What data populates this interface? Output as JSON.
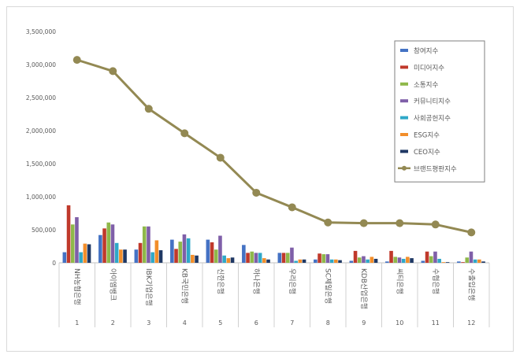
{
  "chart_data": {
    "type": "bar",
    "title": "",
    "xlabel": "",
    "ylabel": "",
    "ylim": [
      0,
      3500000
    ],
    "yticks": [
      "0",
      "500,000",
      "1,000,000",
      "1,500,000",
      "2,000,000",
      "2,500,000",
      "3,000,000",
      "3,500,000"
    ],
    "grid": false,
    "legend_position": "right",
    "ranks": [
      "1",
      "2",
      "3",
      "4",
      "5",
      "6",
      "7",
      "8",
      "9",
      "10",
      "11",
      "12"
    ],
    "categories": [
      "NH농협은행",
      "아이엠뱅크",
      "IBK기업은행",
      "KB국민은행",
      "신한은행",
      "하나은행",
      "우리은행",
      "SC제일은행",
      "KDB산업은행",
      "씨티은행",
      "수협은행",
      "수출입은행"
    ],
    "series": [
      {
        "name": "참여지수",
        "color": "#4472c4",
        "values": [
          160000,
          420000,
          200000,
          350000,
          350000,
          270000,
          150000,
          50000,
          30000,
          20000,
          30000,
          20000
        ]
      },
      {
        "name": "미디어지수",
        "color": "#c0392b",
        "values": [
          870000,
          520000,
          300000,
          210000,
          310000,
          150000,
          150000,
          140000,
          180000,
          180000,
          170000,
          10000
        ]
      },
      {
        "name": "소통지수",
        "color": "#8fb84a",
        "values": [
          580000,
          610000,
          550000,
          320000,
          200000,
          170000,
          150000,
          130000,
          80000,
          90000,
          100000,
          80000
        ]
      },
      {
        "name": "커뮤니티지수",
        "color": "#7f5fa8",
        "values": [
          690000,
          580000,
          550000,
          430000,
          410000,
          150000,
          230000,
          130000,
          100000,
          80000,
          170000,
          170000
        ]
      },
      {
        "name": "사회공헌지수",
        "color": "#2fa8c8",
        "values": [
          160000,
          300000,
          160000,
          370000,
          110000,
          150000,
          30000,
          50000,
          50000,
          60000,
          60000,
          50000
        ]
      },
      {
        "name": "ESG지수",
        "color": "#f28e2b",
        "values": [
          290000,
          200000,
          340000,
          120000,
          70000,
          70000,
          50000,
          50000,
          90000,
          90000,
          10000,
          50000
        ]
      },
      {
        "name": "CEO지수",
        "color": "#1f3864",
        "values": [
          280000,
          200000,
          190000,
          110000,
          80000,
          50000,
          50000,
          40000,
          60000,
          70000,
          10000,
          20000
        ]
      }
    ],
    "line_series": {
      "name": "브랜드평판지수",
      "color": "#938953",
      "values": [
        3070000,
        2900000,
        2330000,
        1960000,
        1590000,
        1060000,
        840000,
        610000,
        600000,
        600000,
        580000,
        460000
      ]
    }
  }
}
